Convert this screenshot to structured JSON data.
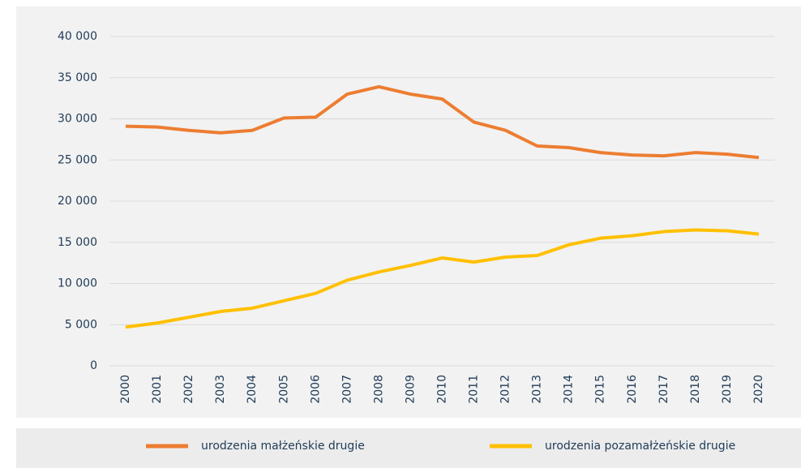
{
  "chart_data": {
    "type": "line",
    "categories": [
      "2000",
      "2001",
      "2002",
      "2003",
      "2004",
      "2005",
      "2006",
      "2007",
      "2008",
      "2009",
      "2010",
      "2011",
      "2012",
      "2013",
      "2014",
      "2015",
      "2016",
      "2017",
      "2018",
      "2019",
      "2020"
    ],
    "series": [
      {
        "name": "urodzenia małżeńskie drugie",
        "color": "#ed7d31",
        "values": [
          29100,
          29000,
          28600,
          28300,
          28600,
          30100,
          30200,
          33000,
          33900,
          33000,
          32400,
          29600,
          28600,
          26700,
          26500,
          25900,
          25600,
          25500,
          25900,
          25700,
          25300
        ]
      },
      {
        "name": "urodzenia pozamałżeńskie drugie",
        "color": "#ffc000",
        "values": [
          4700,
          5200,
          5900,
          6600,
          7000,
          7900,
          8800,
          10400,
          11400,
          12200,
          13100,
          12600,
          13200,
          13400,
          14700,
          15500,
          15800,
          16300,
          16500,
          16400,
          16000
        ]
      }
    ],
    "ylim": [
      0,
      40000
    ],
    "yticks": [
      0,
      {
        "value": 5000,
        "label": "5 000"
      },
      {
        "value": 10000,
        "label": "10 000"
      },
      {
        "value": 15000,
        "label": "15 000"
      },
      {
        "value": 20000,
        "label": "20 000"
      },
      {
        "value": 25000,
        "label": "25 000"
      },
      {
        "value": 30000,
        "label": "30 000"
      },
      {
        "value": 35000,
        "label": "35 000"
      },
      {
        "value": 40000,
        "label": "40 000"
      }
    ],
    "grid": true,
    "legend": "bottom"
  }
}
